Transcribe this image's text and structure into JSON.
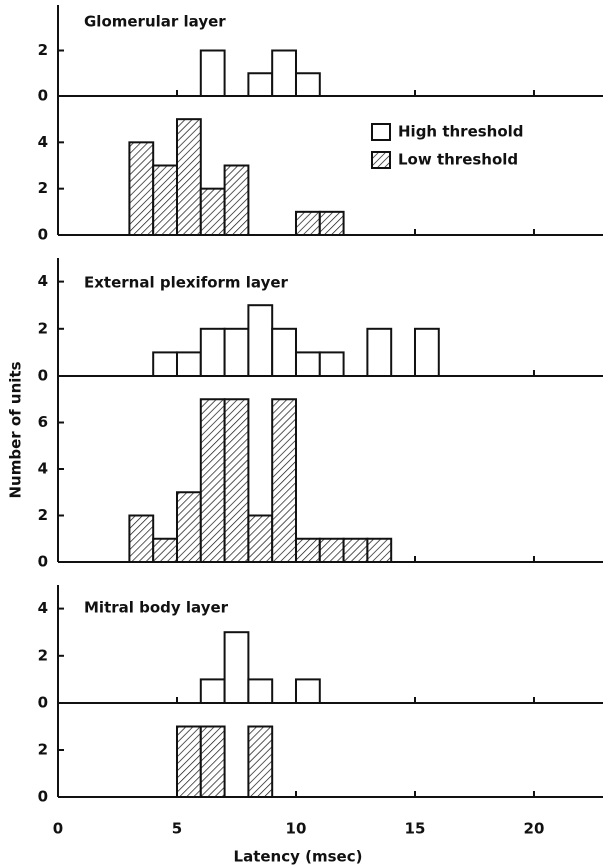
{
  "chart_data": [
    {
      "type": "histogram",
      "title": "Glomerular layer",
      "series": [
        {
          "name": "High threshold",
          "color": "#111",
          "hatch": false,
          "bins": [
            6,
            7,
            8,
            9,
            10,
            11
          ],
          "counts": [
            2,
            0,
            1,
            2,
            1
          ],
          "ylim": [
            0,
            4
          ],
          "yticks": [
            0,
            2
          ]
        },
        {
          "name": "Low threshold",
          "color": "#111",
          "hatch": true,
          "bins": [
            3,
            4,
            5,
            6,
            7,
            8,
            9,
            10,
            11,
            12
          ],
          "counts": [
            4,
            3,
            5,
            2,
            3,
            0,
            0,
            1,
            1
          ],
          "ylim": [
            0,
            6
          ],
          "yticks": [
            0,
            2,
            4
          ]
        }
      ]
    },
    {
      "type": "histogram",
      "title": "External plexiform layer",
      "ylabel": "Number of units",
      "series": [
        {
          "color": "#111",
          "hatch": false,
          "bins": [
            4,
            5,
            6,
            7,
            8,
            9,
            10,
            11,
            12,
            13,
            14,
            15,
            16
          ],
          "counts": [
            1,
            1,
            2,
            2,
            3,
            2,
            1,
            1,
            0,
            2,
            0,
            2
          ],
          "ylim": [
            0,
            5
          ],
          "yticks": [
            0,
            2,
            4
          ]
        },
        {
          "color": "#111",
          "hatch": true,
          "bins": [
            3,
            4,
            5,
            6,
            7,
            8,
            9,
            10,
            11,
            12,
            13,
            14
          ],
          "counts": [
            2,
            1,
            3,
            7,
            7,
            2,
            7,
            1,
            1,
            1,
            1
          ],
          "ylim": [
            0,
            8
          ],
          "yticks": [
            0,
            2,
            4,
            6
          ]
        }
      ]
    },
    {
      "type": "histogram",
      "title": "Mitral body layer",
      "xlabel": "Latency (msec)",
      "xlim": [
        0,
        22.9
      ],
      "xticks": [
        0,
        5,
        10,
        15,
        20
      ],
      "series": [
        {
          "color": "#111",
          "hatch": false,
          "bins": [
            6,
            7,
            8,
            9,
            10,
            11
          ],
          "counts": [
            1,
            3,
            1,
            0,
            1
          ],
          "ylim": [
            0,
            5
          ],
          "yticks": [
            0,
            2,
            4
          ]
        },
        {
          "color": "#111",
          "hatch": true,
          "bins": [
            5,
            6,
            7,
            8,
            9
          ],
          "counts": [
            3,
            3,
            0,
            3
          ],
          "ylim": [
            0,
            4
          ],
          "yticks": [
            0,
            2
          ]
        }
      ]
    }
  ]
}
